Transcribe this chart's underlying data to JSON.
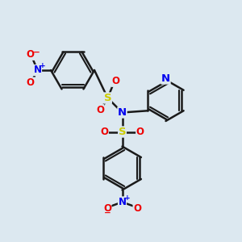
{
  "bg": "#dce8f0",
  "C": "#1a1a1a",
  "N": "#0000ee",
  "O": "#ee0000",
  "S": "#cccc00",
  "bw": 1.8,
  "dbo": 0.09
}
